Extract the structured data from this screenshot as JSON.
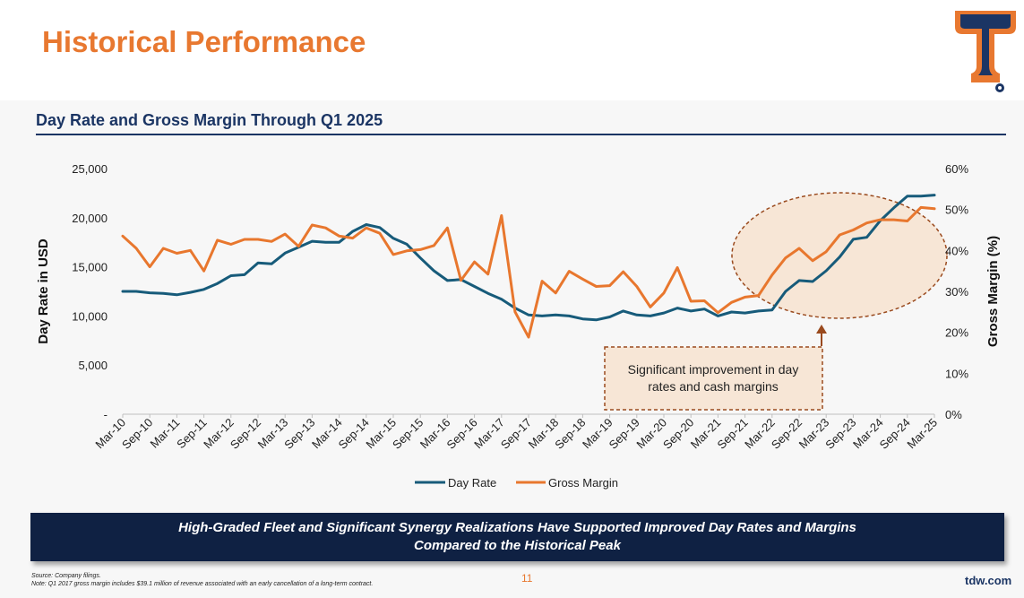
{
  "page": {
    "title": "Historical Performance",
    "chart_title": "Day Rate and Gross Margin Through Q1 2025",
    "banner_line1": "High-Graded Fleet and Significant Synergy Realizations Have Supported Improved Day Rates and Margins",
    "banner_line2": "Compared to the Historical Peak",
    "footnote_line1": "Source: Company filings.",
    "footnote_line2": "Note: Q1 2017 gross margin includes $39.1 million of revenue associated with an early cancellation of a long-term contract.",
    "page_number": "11",
    "site": "tdw.com"
  },
  "colors": {
    "title_orange": "#e87830",
    "navy": "#1b3564",
    "day_rate": "#175b7a",
    "gross_margin": "#e8772e",
    "highlight_fill": "#f7e6d6",
    "highlight_stroke": "#9a4a1e"
  },
  "chart_data": {
    "type": "line",
    "x_tick_labels": [
      "Mar-10",
      "Sep-10",
      "Mar-11",
      "Sep-11",
      "Mar-12",
      "Sep-12",
      "Mar-13",
      "Sep-13",
      "Mar-14",
      "Sep-14",
      "Mar-15",
      "Sep-15",
      "Mar-16",
      "Sep-16",
      "Mar-17",
      "Sep-17",
      "Mar-18",
      "Sep-18",
      "Mar-19",
      "Sep-19",
      "Mar-20",
      "Sep-20",
      "Mar-21",
      "Sep-21",
      "Mar-22",
      "Sep-22",
      "Mar-23",
      "Sep-23",
      "Mar-24",
      "Sep-24",
      "Mar-25"
    ],
    "y_left": {
      "label": "Day Rate in USD",
      "min": 0,
      "max": 25000,
      "ticks": [
        "-",
        "5,000",
        "10,000",
        "15,000",
        "20,000",
        "25,000"
      ]
    },
    "y_right": {
      "label": "Gross Margin (%)",
      "min": 0,
      "max": 60,
      "ticks": [
        "0%",
        "10%",
        "20%",
        "30%",
        "40%",
        "50%",
        "60%"
      ]
    },
    "legend_position": "bottom",
    "series": [
      {
        "name": "Day Rate",
        "axis": "left",
        "values": [
          12500,
          12500,
          12350,
          12300,
          12150,
          12400,
          12700,
          13300,
          14100,
          14200,
          15400,
          15300,
          16400,
          17000,
          17600,
          17500,
          17500,
          18600,
          19300,
          19000,
          17900,
          17300,
          15900,
          14600,
          13600,
          13700,
          13000,
          12300,
          11700,
          10800,
          10100,
          10000,
          10100,
          10000,
          9700,
          9600,
          9900,
          10500,
          10100,
          10000,
          10300,
          10800,
          10500,
          10700,
          10000,
          10400,
          10300,
          10500,
          10600,
          12500,
          13600,
          13500,
          14600,
          16000,
          17800,
          18000,
          19700,
          21000,
          22200,
          22200,
          22300
        ]
      },
      {
        "name": "Gross Margin",
        "axis": "right",
        "values": [
          43.5,
          40.5,
          36,
          40.5,
          39.3,
          40,
          35,
          42.5,
          41.5,
          42.7,
          42.7,
          42.2,
          44,
          41,
          46.2,
          45.5,
          43.5,
          43,
          45.5,
          44.2,
          39,
          39.9,
          40.2,
          41.2,
          45.5,
          32.7,
          37.2,
          34.2,
          48.5,
          25,
          18.8,
          32.5,
          29.6,
          34.9,
          33,
          31.2,
          31.4,
          34.8,
          31.2,
          26.2,
          29.6,
          35.8,
          27.6,
          27.7,
          24.8,
          27.3,
          28.6,
          29,
          34,
          38.2,
          40.5,
          37.5,
          39.7,
          43.8,
          45,
          46.7,
          47.5,
          47.5,
          47.2,
          50.5,
          50.2
        ]
      }
    ],
    "annotation": "Significant improvement in day rates and cash margins"
  }
}
